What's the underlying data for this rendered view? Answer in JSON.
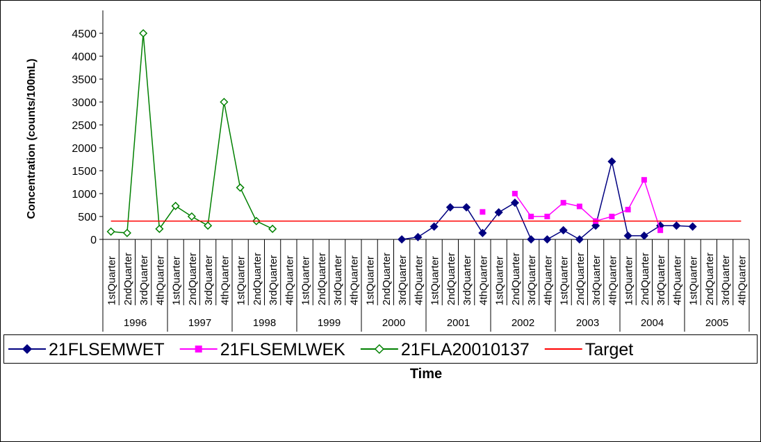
{
  "chart_data": {
    "type": "line",
    "y_label": "Concentration (counts/100mL)",
    "x_label": "Time",
    "categories": [
      "1stQuarter",
      "2ndQuarter",
      "3rdQuarter",
      "4thQuarter",
      "1stQuarter",
      "2ndQuarter",
      "3rdQuarter",
      "4thQuarter",
      "1stQuarter",
      "2ndQuarter",
      "3rdQuarter",
      "4thQuarter",
      "1stQuarter",
      "2ndQuarter",
      "3rdQuarter",
      "4thQuarter",
      "1stQuarter",
      "2ndQuarter",
      "3rdQuarter",
      "4thQuarter",
      "1stQuarter",
      "2ndQuarter",
      "3rdQuarter",
      "4thQuarter",
      "1stQuarter",
      "2ndQuarter",
      "3rdQuarter",
      "4thQuarter",
      "1stQuarter",
      "2ndQuarter",
      "3rdQuarter",
      "4thQuarter",
      "1stQuarter",
      "2ndQuarter",
      "3rdQuarter",
      "4thQuarter",
      "1stQuarter",
      "2ndQuarter",
      "3rdQuarter",
      "4thQuarter"
    ],
    "years": [
      "1996",
      "1997",
      "1998",
      "1999",
      "2000",
      "2001",
      "2002",
      "2003",
      "2004",
      "2005"
    ],
    "series": [
      {
        "name": "21FLSEMWET",
        "color": "#000080",
        "marker": "diamond",
        "values": [
          null,
          null,
          null,
          null,
          null,
          null,
          null,
          null,
          null,
          null,
          null,
          null,
          null,
          null,
          null,
          null,
          null,
          null,
          0,
          50,
          280,
          700,
          700,
          140,
          590,
          800,
          0,
          0,
          200,
          0,
          300,
          1700,
          80,
          80,
          300,
          300,
          280,
          null,
          null,
          null
        ]
      },
      {
        "name": "21FLSEMLWEK",
        "color": "#ff00ff",
        "marker": "square",
        "values": [
          null,
          null,
          null,
          null,
          null,
          null,
          null,
          null,
          null,
          null,
          null,
          null,
          null,
          null,
          null,
          null,
          null,
          null,
          null,
          null,
          null,
          null,
          null,
          600,
          null,
          1000,
          500,
          500,
          800,
          720,
          400,
          500,
          650,
          1300,
          200,
          null,
          null,
          null,
          null,
          null
        ]
      },
      {
        "name": "21FLA20010137",
        "color": "#008000",
        "marker": "open-diamond",
        "values": [
          170,
          140,
          4500,
          230,
          730,
          500,
          300,
          3000,
          1130,
          400,
          230,
          null,
          null,
          null,
          null,
          null,
          null,
          null,
          null,
          null,
          null,
          null,
          null,
          null,
          null,
          null,
          null,
          null,
          null,
          null,
          null,
          null,
          null,
          null,
          null,
          null,
          null,
          null,
          null,
          null
        ]
      },
      {
        "name": "Target",
        "color": "#ff0000",
        "marker": "none",
        "values": [
          400,
          400,
          400,
          400,
          400,
          400,
          400,
          400,
          400,
          400,
          400,
          400,
          400,
          400,
          400,
          400,
          400,
          400,
          400,
          400,
          400,
          400,
          400,
          400,
          400,
          400,
          400,
          400,
          400,
          400,
          400,
          400,
          400,
          400,
          400,
          400,
          400,
          400,
          400,
          400
        ]
      }
    ],
    "ylim": [
      0,
      4500
    ],
    "yticks": [
      0,
      500,
      1000,
      1500,
      2000,
      2500,
      3000,
      3500,
      4000,
      4500
    ],
    "legend": "bottom"
  }
}
